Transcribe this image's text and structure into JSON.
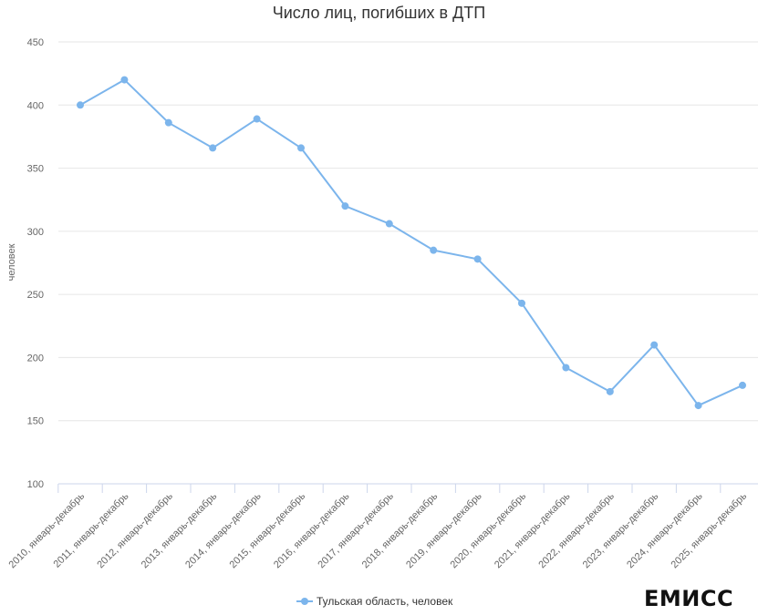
{
  "chart_data": {
    "type": "line",
    "title": "Число лиц, погибших в ДТП",
    "ylabel": "человек",
    "xlabel": "",
    "ylim": [
      100,
      450
    ],
    "yticks": [
      100,
      150,
      200,
      250,
      300,
      350,
      400,
      450
    ],
    "categories": [
      "2010, январь-декабрь",
      "2011, январь-декабрь",
      "2012, январь-декабрь",
      "2013, январь-декабрь",
      "2014, январь-декабрь",
      "2015, январь-декабрь",
      "2016, январь-декабрь",
      "2017, январь-декабрь",
      "2018, январь-декабрь",
      "2019, январь-декабрь",
      "2020, январь-декабрь",
      "2021, январь-декабрь",
      "2022, январь-декабрь",
      "2023, январь-декабрь",
      "2024, январь-декабрь",
      "2025, январь-декабрь"
    ],
    "series": [
      {
        "name": "Тульская область, человек",
        "color": "#7cb5ec",
        "values": [
          400,
          420,
          386,
          366,
          389,
          366,
          320,
          306,
          285,
          278,
          243,
          192,
          173,
          210,
          162,
          178
        ]
      }
    ],
    "grid": true,
    "legend_position": "bottom-center"
  },
  "source_label": "ЕМИСС"
}
